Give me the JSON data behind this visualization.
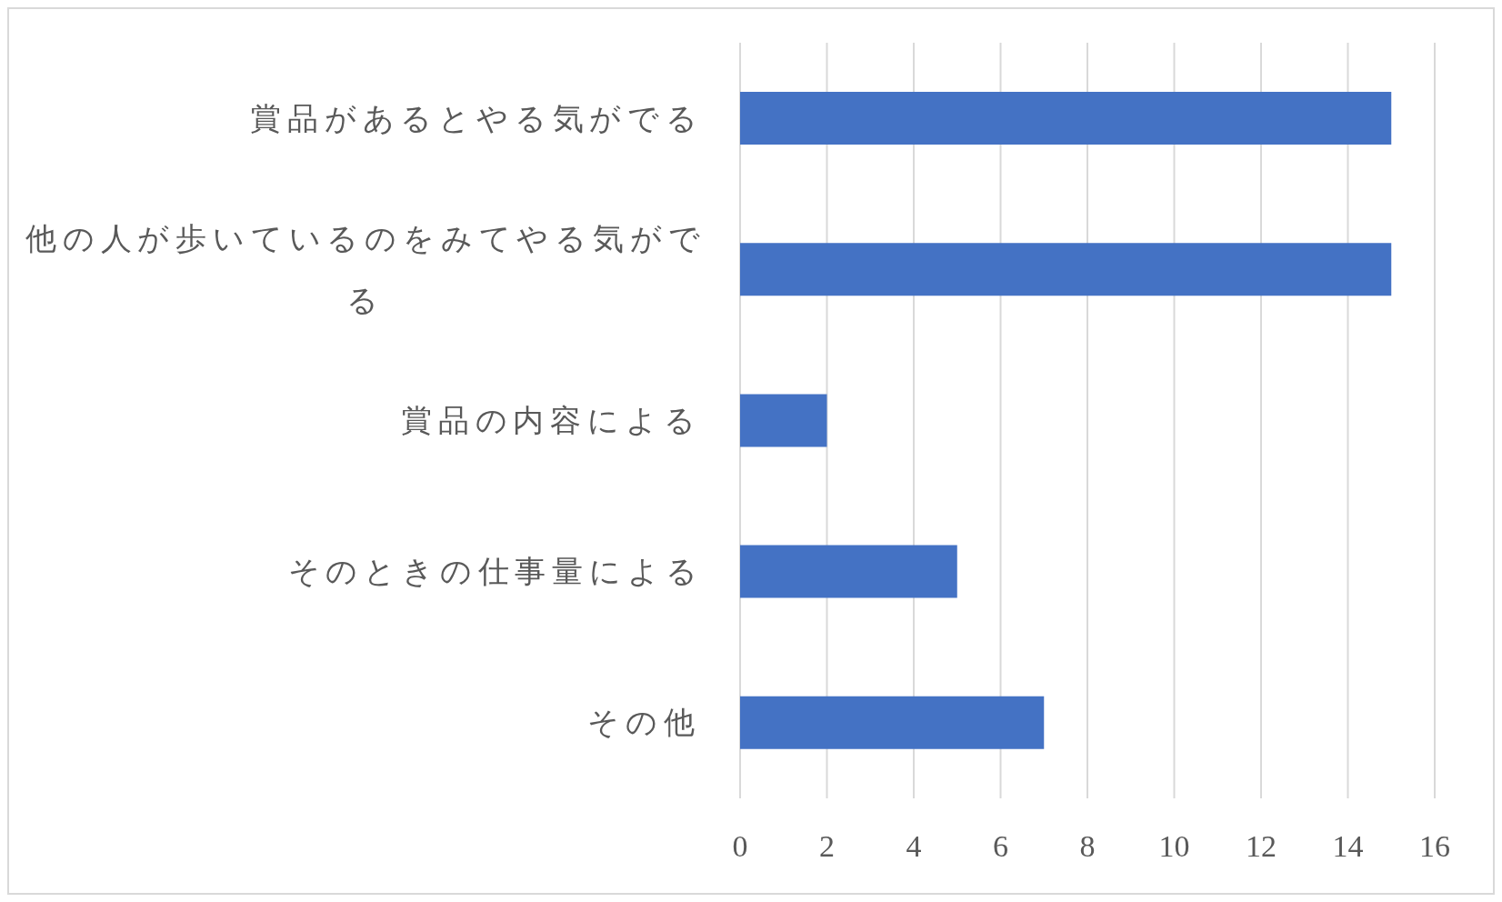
{
  "chart_data": {
    "type": "bar",
    "orientation": "horizontal",
    "categories": [
      "賞品があるとやる気がでる",
      "他の人が歩いているのをみてやる気がでる",
      "賞品の内容による",
      "そのときの仕事量による",
      "その他"
    ],
    "values": [
      15,
      15,
      2,
      5,
      7
    ],
    "color": "#4472c4",
    "xlim": [
      0,
      16
    ],
    "xticks": [
      0,
      2,
      4,
      6,
      8,
      10,
      12,
      14,
      16
    ],
    "grid": "x"
  }
}
